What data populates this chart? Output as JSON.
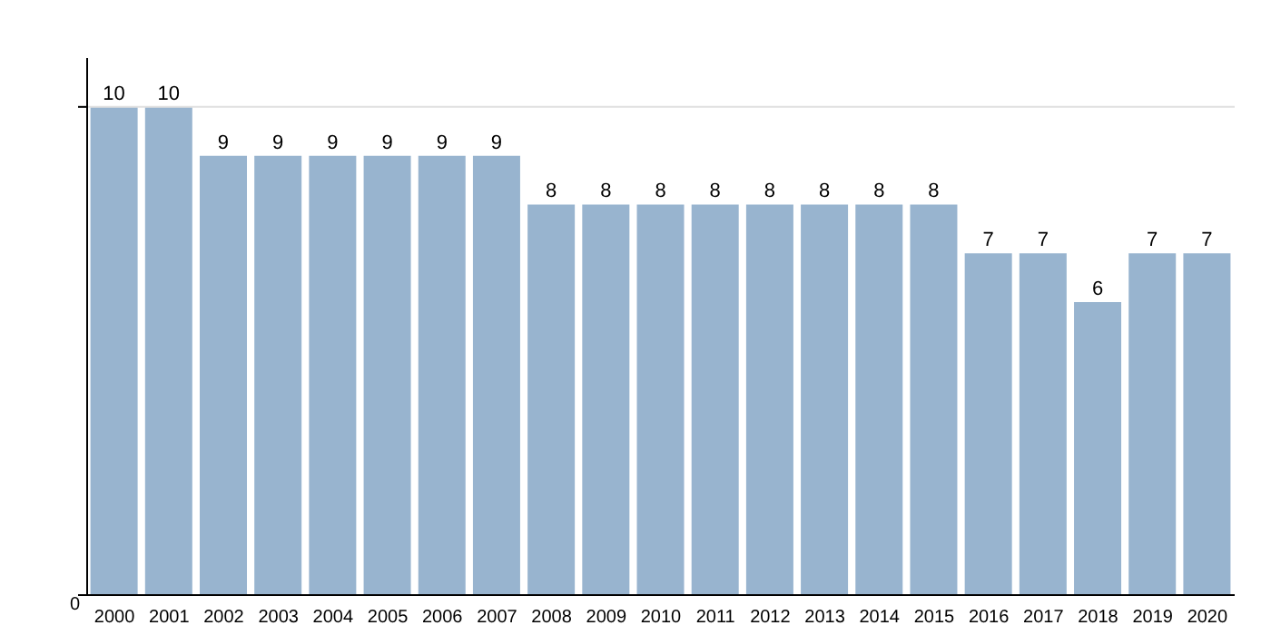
{
  "chart_data": {
    "type": "bar",
    "categories": [
      "2000",
      "2001",
      "2002",
      "2003",
      "2004",
      "2005",
      "2006",
      "2007",
      "2008",
      "2009",
      "2010",
      "2011",
      "2012",
      "2013",
      "2014",
      "2015",
      "2016",
      "2017",
      "2018",
      "2019",
      "2020"
    ],
    "values": [
      10,
      10,
      9,
      9,
      9,
      9,
      9,
      9,
      8,
      8,
      8,
      8,
      8,
      8,
      8,
      8,
      7,
      7,
      6,
      7,
      7
    ],
    "color": "#98b4cf",
    "ylim": [
      0,
      11
    ],
    "yticks": [
      {
        "value": 0,
        "label": null
      },
      {
        "value": 10,
        "label": null
      }
    ],
    "annotations": [
      "0"
    ],
    "ref_lines": [
      {
        "axis": "y",
        "value": 10,
        "color": "#e0e0e0"
      }
    ],
    "data_labels": true
  }
}
